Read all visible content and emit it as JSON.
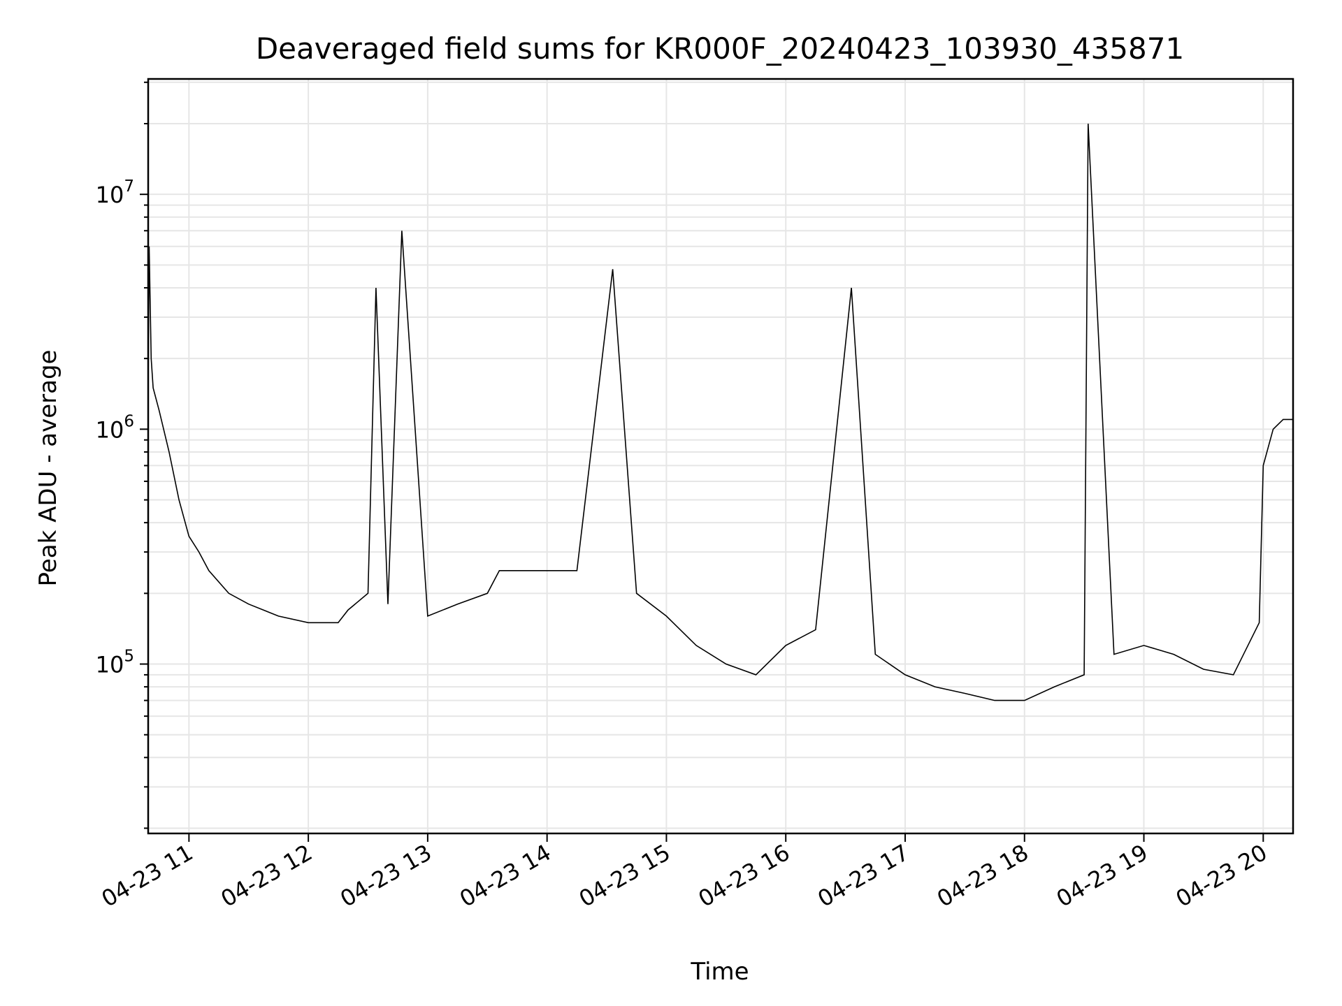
{
  "chart_data": {
    "type": "line",
    "title": "Deaveraged field sums for KR000F_20240423_103930_435871",
    "xlabel": "Time",
    "ylabel": "Peak ADU - average",
    "y_scale": "log",
    "ylim": [
      19000,
      31000000
    ],
    "xlim": [
      "2024-04-23 10:39:30",
      "2024-04-23 20:15:00"
    ],
    "grid": true,
    "line_color": "#000000",
    "grid_color": "#e6e6e6",
    "x_tick_labels": [
      "04-23 11",
      "04-23 12",
      "04-23 13",
      "04-23 14",
      "04-23 15",
      "04-23 16",
      "04-23 17",
      "04-23 18",
      "04-23 19",
      "04-23 20"
    ],
    "y_tick_labels": [
      {
        "base": "10",
        "exp": "5",
        "value": 100000
      },
      {
        "base": "10",
        "exp": "6",
        "value": 1000000
      },
      {
        "base": "10",
        "exp": "7",
        "value": 10000000
      }
    ],
    "series": [
      {
        "x": [
          "2024-04-23 10:39:30",
          "2024-04-23 10:40:00",
          "2024-04-23 10:41:00",
          "2024-04-23 10:42:00",
          "2024-04-23 10:45:00",
          "2024-04-23 10:50:00",
          "2024-04-23 10:55:00",
          "2024-04-23 11:00:00",
          "2024-04-23 11:05:00",
          "2024-04-23 11:10:00",
          "2024-04-23 11:20:00",
          "2024-04-23 11:30:00",
          "2024-04-23 11:45:00",
          "2024-04-23 12:00:00",
          "2024-04-23 12:15:00",
          "2024-04-23 12:20:00",
          "2024-04-23 12:30:00",
          "2024-04-23 12:34:00",
          "2024-04-23 12:40:00",
          "2024-04-23 12:47:00",
          "2024-04-23 13:00:00",
          "2024-04-23 13:15:00",
          "2024-04-23 13:30:00",
          "2024-04-23 13:36:00",
          "2024-04-23 13:45:00",
          "2024-04-23 14:00:00",
          "2024-04-23 14:15:00",
          "2024-04-23 14:33:00",
          "2024-04-23 14:45:00",
          "2024-04-23 15:00:00",
          "2024-04-23 15:15:00",
          "2024-04-23 15:30:00",
          "2024-04-23 15:45:00",
          "2024-04-23 16:00:00",
          "2024-04-23 16:15:00",
          "2024-04-23 16:33:00",
          "2024-04-23 16:45:00",
          "2024-04-23 17:00:00",
          "2024-04-23 17:15:00",
          "2024-04-23 17:30:00",
          "2024-04-23 17:45:00",
          "2024-04-23 18:00:00",
          "2024-04-23 18:15:00",
          "2024-04-23 18:30:00",
          "2024-04-23 18:32:00",
          "2024-04-23 18:45:00",
          "2024-04-23 19:00:00",
          "2024-04-23 19:15:00",
          "2024-04-23 19:30:00",
          "2024-04-23 19:45:00",
          "2024-04-23 19:58:00",
          "2024-04-23 20:00:00",
          "2024-04-23 20:05:00",
          "2024-04-23 20:10:00",
          "2024-04-23 20:15:00"
        ],
        "y": [
          1500000,
          6000000,
          2000000,
          1500000,
          1200000,
          800000,
          500000,
          350000,
          300000,
          250000,
          200000,
          180000,
          160000,
          150000,
          150000,
          170000,
          200000,
          4000000,
          180000,
          7000000,
          160000,
          180000,
          200000,
          250000,
          250000,
          250000,
          250000,
          4800000,
          200000,
          160000,
          120000,
          100000,
          90000,
          120000,
          140000,
          4000000,
          110000,
          90000,
          80000,
          75000,
          70000,
          70000,
          80000,
          90000,
          20000000,
          110000,
          120000,
          110000,
          95000,
          90000,
          150000,
          700000,
          1000000,
          1100000,
          1100000
        ]
      }
    ]
  }
}
